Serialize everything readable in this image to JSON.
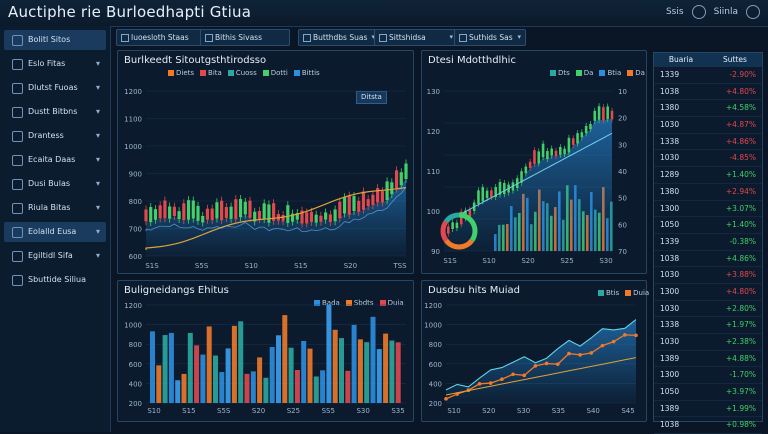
{
  "window": {
    "title": "Auctiphe rie Burloedhapti Gtiua",
    "controls": [
      "Ssis",
      "Siinla"
    ]
  },
  "sidebar": {
    "items": [
      {
        "label": "Bolitl Sitos",
        "active": true
      },
      {
        "label": "Eslo Fitas"
      },
      {
        "label": "Dlutst Fuoas"
      },
      {
        "label": "Dustt Bitbns"
      },
      {
        "label": "Drantess"
      },
      {
        "label": "Ecaita Daas"
      },
      {
        "label": "Dusi Bulas"
      },
      {
        "label": "Riula Bitas"
      },
      {
        "label": "Eolalld Eusa",
        "active": true
      },
      {
        "label": "Egiltidl Sifa"
      },
      {
        "label": "Sbuttide Siliua"
      }
    ]
  },
  "toolbar": {
    "chips": [
      "Iuoesloth Staas",
      "Bithis Sivass",
      "Butthdbs Suas",
      "Sittshidsa",
      "Suthids Sas"
    ]
  },
  "panels": {
    "candles": {
      "title": "Burlkeedt Sitoutgsthtirodsso",
      "legend": [
        "Diets",
        "Bita",
        "Cuoss",
        "Dotti",
        "Bittis"
      ],
      "badge": "Ditsta",
      "yticks": [
        "1200",
        "1100",
        "1000",
        "900",
        "800",
        "700",
        "600"
      ],
      "xticks": [
        "S1S",
        "S5S",
        "S10",
        "S15",
        "S20",
        "TSS"
      ]
    },
    "trend": {
      "title": "Dtesi Mdotthdlhic",
      "legend": [
        "Dts",
        "Da",
        "Btia",
        "Da"
      ],
      "yticks": [
        "130",
        "120",
        "110",
        "100",
        "90"
      ],
      "xticks": [
        "S1S",
        "S10",
        "S20",
        "S25",
        "S30"
      ],
      "rticks": [
        "10",
        "20",
        "30",
        "40",
        "50",
        "60",
        "70"
      ]
    },
    "bars": {
      "title": "Buligneidangs Ehitus",
      "legend": [
        "Bada",
        "Sbdts",
        "Duia"
      ],
      "yticks": [
        "1200",
        "1000",
        "800",
        "600",
        "400",
        "200"
      ],
      "xticks": [
        "S10",
        "S15",
        "S5S",
        "S20",
        "S25",
        "SS5",
        "S30",
        "S35"
      ]
    },
    "lines": {
      "title": "Dusdsu hits Muiad",
      "legend": [
        "Btis",
        "Duia"
      ],
      "yticks": [
        "1200",
        "1000",
        "800",
        "600",
        "400",
        "200"
      ],
      "xticks": [
        "S10",
        "S20",
        "S30",
        "S35",
        "S40",
        "S45"
      ]
    }
  },
  "table": {
    "headers": [
      "Buaria",
      "Suttes"
    ],
    "rows": [
      {
        "a": "1339",
        "b": "-2.90%",
        "dir": "down"
      },
      {
        "a": "1038",
        "b": "+4.80%",
        "dir": "down"
      },
      {
        "a": "1380",
        "b": "+4.58%",
        "dir": "up"
      },
      {
        "a": "1030",
        "b": "+4.87%",
        "dir": "down"
      },
      {
        "a": "1338",
        "b": "+4.86%",
        "dir": "down"
      },
      {
        "a": "1030",
        "b": "-4.85%",
        "dir": "down"
      },
      {
        "a": "1289",
        "b": "+1.40%",
        "dir": "up"
      },
      {
        "a": "1380",
        "b": "+2.94%",
        "dir": "down"
      },
      {
        "a": "1300",
        "b": "+3.07%",
        "dir": "up"
      },
      {
        "a": "1050",
        "b": "+1.40%",
        "dir": "up"
      },
      {
        "a": "1339",
        "b": "-0.38%",
        "dir": "up"
      },
      {
        "a": "1038",
        "b": "+4.86%",
        "dir": "up"
      },
      {
        "a": "1030",
        "b": "+3.88%",
        "dir": "down"
      },
      {
        "a": "1300",
        "b": "+4.80%",
        "dir": "down"
      },
      {
        "a": "1030",
        "b": "+2.80%",
        "dir": "up"
      },
      {
        "a": "1338",
        "b": "+1.97%",
        "dir": "up"
      },
      {
        "a": "1030",
        "b": "+2.38%",
        "dir": "up"
      },
      {
        "a": "1389",
        "b": "+4.88%",
        "dir": "up"
      },
      {
        "a": "1300",
        "b": "-1.70%",
        "dir": "up"
      },
      {
        "a": "1050",
        "b": "+3.97%",
        "dir": "up"
      },
      {
        "a": "1389",
        "b": "+1.99%",
        "dir": "up"
      },
      {
        "a": "1038",
        "b": "+0.98%",
        "dir": "up"
      }
    ]
  },
  "colors": {
    "up": "#41d06a",
    "down": "#e0494f",
    "blue": "#2a8fe0",
    "orange": "#f07a2a",
    "teal": "#2aa9a0",
    "accent": "#e0a23a"
  }
}
